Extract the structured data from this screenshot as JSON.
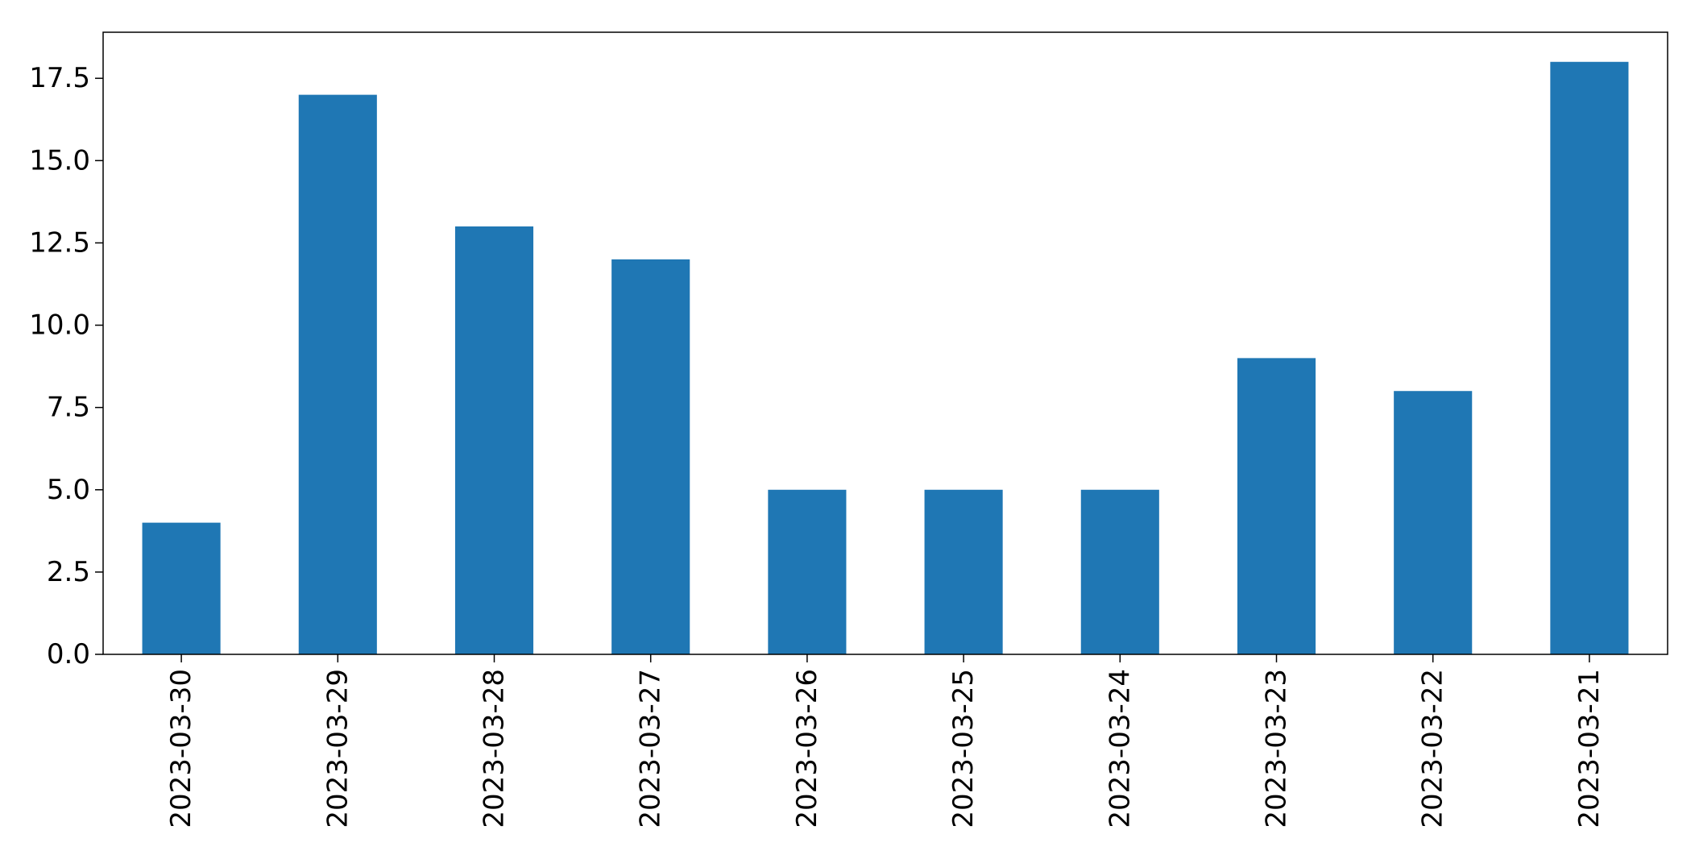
{
  "chart_data": {
    "type": "bar",
    "title": "",
    "xlabel": "",
    "ylabel": "",
    "categories": [
      "2023-03-30",
      "2023-03-29",
      "2023-03-28",
      "2023-03-27",
      "2023-03-26",
      "2023-03-25",
      "2023-03-24",
      "2023-03-23",
      "2023-03-22",
      "2023-03-21"
    ],
    "values": [
      4,
      17,
      13,
      12,
      5,
      5,
      5,
      9,
      8,
      18
    ],
    "ylim": [
      0,
      18.9
    ],
    "yticks": [
      "0.0",
      "2.5",
      "5.0",
      "7.5",
      "10.0",
      "12.5",
      "15.0",
      "17.5"
    ],
    "bar_color": "#1f77b4",
    "axis_color": "#000000",
    "grid": false,
    "legend": "none",
    "x_tick_rotation": "vertical"
  }
}
